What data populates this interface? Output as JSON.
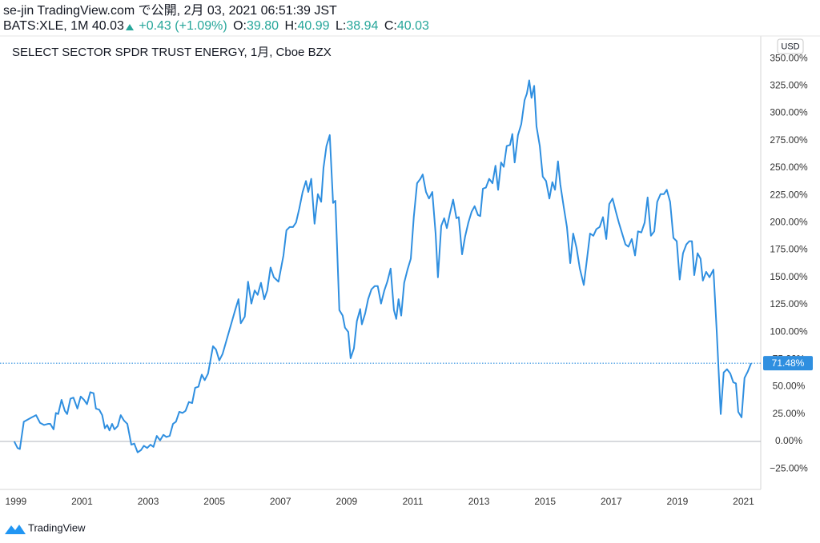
{
  "header": {
    "publisher": "se-jin TradingView.com で公開, 2月 03, 2021 06:51:39 JST",
    "symbol": "BATS:XLE, 1M 40.03",
    "change": "+0.43 (+1.09%)",
    "ohlc": [
      {
        "label": "O:",
        "value": "39.80"
      },
      {
        "label": "H:",
        "value": "40.99"
      },
      {
        "label": "L:",
        "value": "38.94"
      },
      {
        "label": "C:",
        "value": "40.03"
      }
    ]
  },
  "footer": {
    "brand": "TradingView"
  },
  "chart_data": {
    "type": "line",
    "title": "SELECT SECTOR SPDR TRUST ENERGY, 1月, Cboe BZX",
    "currency": "USD",
    "grid": false,
    "price_line": {
      "value": 71.48,
      "label": "71.48%"
    },
    "xlim": [
      1998.52,
      2021.52
    ],
    "xticks": [
      1999,
      2001,
      2003,
      2005,
      2007,
      2009,
      2011,
      2013,
      2015,
      2017,
      2019,
      2021
    ],
    "ylim": [
      -43.9,
      370.6
    ],
    "yticks": [
      {
        "value": -25,
        "label": "−25.00%"
      },
      {
        "value": 0,
        "label": "0.00%"
      },
      {
        "value": 25,
        "label": "25.00%"
      },
      {
        "value": 50,
        "label": "50.00%"
      },
      {
        "value": 75,
        "label": "75.00%"
      },
      {
        "value": 100,
        "label": "100.00%"
      },
      {
        "value": 125,
        "label": "125.00%"
      },
      {
        "value": 150,
        "label": "150.00%"
      },
      {
        "value": 175,
        "label": "175.00%"
      },
      {
        "value": 200,
        "label": "200.00%"
      },
      {
        "value": 225,
        "label": "225.00%"
      },
      {
        "value": 250,
        "label": "250.00%"
      },
      {
        "value": 275,
        "label": "275.00%"
      },
      {
        "value": 300,
        "label": "300.00%"
      },
      {
        "value": 325,
        "label": "325.00%"
      },
      {
        "value": 350,
        "label": "350.00%"
      }
    ],
    "x": [
      1998.95,
      1999.05,
      1999.12,
      1999.24,
      1999.36,
      1999.48,
      1999.61,
      1999.73,
      1999.85,
      1999.97,
      2000.04,
      2000.14,
      2000.21,
      2000.28,
      2000.38,
      2000.48,
      2000.55,
      2000.65,
      2000.74,
      2000.86,
      2000.96,
      2001.06,
      2001.15,
      2001.25,
      2001.35,
      2001.42,
      2001.52,
      2001.61,
      2001.69,
      2001.76,
      2001.83,
      2001.91,
      2001.98,
      2002.08,
      2002.17,
      2002.27,
      2002.37,
      2002.49,
      2002.58,
      2002.68,
      2002.78,
      2002.87,
      2002.97,
      2003.07,
      2003.16,
      2003.26,
      2003.36,
      2003.46,
      2003.55,
      2003.65,
      2003.75,
      2003.84,
      2003.94,
      2004.04,
      2004.13,
      2004.23,
      2004.33,
      2004.42,
      2004.52,
      2004.62,
      2004.71,
      2004.81,
      2004.96,
      2005.05,
      2005.15,
      2005.25,
      2005.44,
      2005.63,
      2005.73,
      2005.8,
      2005.92,
      2006.02,
      2006.12,
      2006.22,
      2006.31,
      2006.41,
      2006.51,
      2006.6,
      2006.7,
      2006.8,
      2006.94,
      2007.09,
      2007.18,
      2007.28,
      2007.38,
      2007.47,
      2007.57,
      2007.67,
      2007.77,
      2007.84,
      2007.93,
      2008.03,
      2008.13,
      2008.23,
      2008.3,
      2008.39,
      2008.49,
      2008.59,
      2008.66,
      2008.78,
      2008.88,
      2008.95,
      2009.05,
      2009.12,
      2009.22,
      2009.31,
      2009.41,
      2009.46,
      2009.56,
      2009.65,
      2009.75,
      2009.85,
      2009.94,
      2010.04,
      2010.14,
      2010.23,
      2010.33,
      2010.43,
      2010.5,
      2010.57,
      2010.65,
      2010.74,
      2010.84,
      2010.94,
      2011.03,
      2011.13,
      2011.23,
      2011.3,
      2011.4,
      2011.49,
      2011.59,
      2011.69,
      2011.76,
      2011.86,
      2011.95,
      2012.03,
      2012.12,
      2012.22,
      2012.32,
      2012.39,
      2012.49,
      2012.58,
      2012.68,
      2012.78,
      2012.87,
      2012.97,
      2013.04,
      2013.12,
      2013.21,
      2013.31,
      2013.41,
      2013.5,
      2013.58,
      2013.67,
      2013.75,
      2013.84,
      2013.94,
      2014.01,
      2014.08,
      2014.18,
      2014.28,
      2014.38,
      2014.45,
      2014.52,
      2014.59,
      2014.67,
      2014.74,
      2014.84,
      2014.93,
      2015.03,
      2015.13,
      2015.22,
      2015.3,
      2015.39,
      2015.46,
      2015.56,
      2015.66,
      2015.76,
      2015.85,
      2015.95,
      2016.05,
      2016.17,
      2016.26,
      2016.36,
      2016.46,
      2016.55,
      2016.65,
      2016.75,
      2016.85,
      2016.94,
      2017.04,
      2017.14,
      2017.23,
      2017.33,
      2017.43,
      2017.52,
      2017.62,
      2017.72,
      2017.81,
      2017.91,
      2018.01,
      2018.1,
      2018.2,
      2018.3,
      2018.39,
      2018.49,
      2018.59,
      2018.68,
      2018.78,
      2018.88,
      2018.98,
      2019.07,
      2019.17,
      2019.27,
      2019.36,
      2019.44,
      2019.51,
      2019.61,
      2019.7,
      2019.77,
      2019.87,
      2019.97,
      2020.09,
      2020.19,
      2020.31,
      2020.4,
      2020.5,
      2020.6,
      2020.69,
      2020.77,
      2020.84,
      2020.94,
      2021.03,
      2021.13,
      2021.23
    ],
    "series": [
      {
        "name": "XLE",
        "color": "#2f8fe0",
        "values": [
          0,
          -6,
          -7,
          18,
          20,
          22,
          24,
          17,
          15,
          16,
          16,
          11,
          26,
          25,
          38,
          28,
          25,
          39,
          40,
          30,
          41,
          38,
          34,
          45,
          44,
          30,
          29,
          24,
          12,
          15,
          10,
          16,
          11,
          14,
          24,
          19,
          16,
          -3,
          -2,
          -10,
          -8,
          -4,
          -6,
          -3,
          -5,
          5,
          1,
          6,
          4,
          5,
          16,
          18,
          27,
          26,
          28,
          36,
          35,
          49,
          50,
          61,
          56,
          62,
          87,
          84,
          74,
          80,
          100,
          120,
          130,
          108,
          114,
          146,
          126,
          138,
          134,
          145,
          130,
          138,
          159,
          150,
          146,
          170,
          193,
          196,
          196,
          200,
          213,
          228,
          238,
          228,
          240,
          199,
          226,
          219,
          250,
          270,
          280,
          218,
          220,
          120,
          115,
          104,
          100,
          76,
          85,
          110,
          121,
          107,
          117,
          130,
          139,
          142,
          142,
          126,
          138,
          146,
          158,
          120,
          112,
          130,
          115,
          145,
          157,
          167,
          205,
          236,
          240,
          244,
          228,
          222,
          228,
          190,
          150,
          197,
          204,
          195,
          208,
          221,
          204,
          205,
          171,
          187,
          200,
          210,
          215,
          207,
          206,
          231,
          232,
          240,
          236,
          252,
          230,
          255,
          251,
          270,
          271,
          281,
          255,
          280,
          290,
          312,
          318,
          330,
          314,
          325,
          288,
          270,
          242,
          238,
          222,
          237,
          230,
          256,
          235,
          215,
          196,
          163,
          190,
          177,
          158,
          143,
          165,
          190,
          188,
          194,
          196,
          205,
          185,
          217,
          222,
          210,
          200,
          190,
          180,
          178,
          185,
          170,
          192,
          191,
          200,
          223,
          188,
          192,
          219,
          226,
          226,
          230,
          219,
          186,
          183,
          148,
          172,
          180,
          183,
          183,
          152,
          172,
          167,
          147,
          155,
          150,
          157,
          100,
          25,
          63,
          66,
          62,
          54,
          53,
          27,
          22,
          58,
          64,
          71.48
        ]
      }
    ]
  }
}
